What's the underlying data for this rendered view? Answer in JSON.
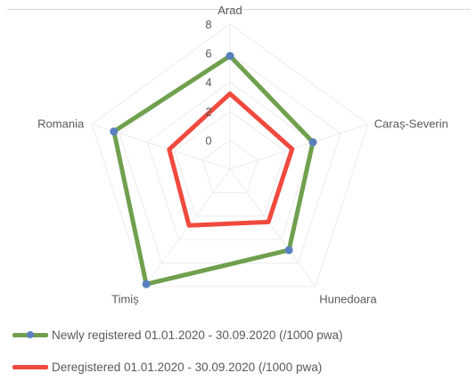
{
  "chart_data": {
    "type": "radar",
    "title": "",
    "categories": [
      "Arad",
      "Caraș-Severin",
      "Hunedoara",
      "Timiș",
      "Romania"
    ],
    "series": [
      {
        "name": "Newly registered 01.01.2020 - 30.09.2020 (/1000 pwa)",
        "values": [
          5.8,
          4.0,
          4.9,
          7.8,
          6.4
        ],
        "color": "#70a04e",
        "marker_color": "#5a7fbf"
      },
      {
        "name": "Deregistered 01.01.2020 - 30.09.2020 (/1000 pwa)",
        "values": [
          3.2,
          2.5,
          2.5,
          2.8,
          2.4
        ],
        "color": "#f04a3e"
      }
    ],
    "r_ticks": [
      "0",
      "2",
      "4",
      "6",
      "8"
    ],
    "rlim": [
      -2,
      8
    ],
    "grid": true,
    "legend_position": "bottom"
  }
}
